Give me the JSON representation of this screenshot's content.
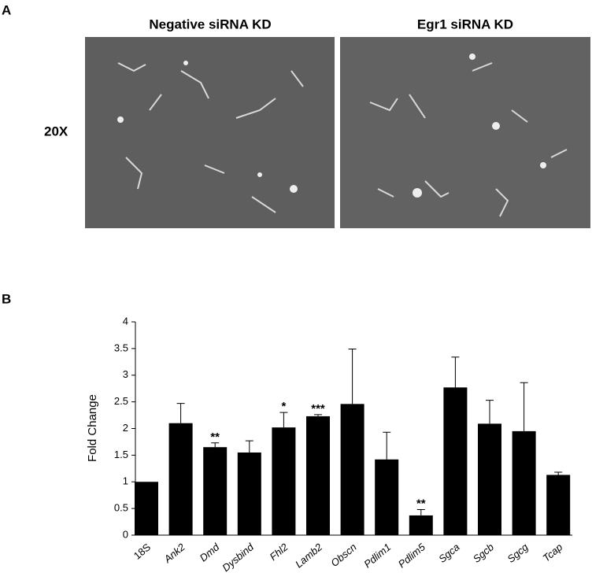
{
  "panel_a": {
    "label": "A",
    "columns": [
      "Negative siRNA KD",
      "Egr1 siRNA KD"
    ],
    "row_label": "20X"
  },
  "panel_b_label": "B",
  "chart_data": {
    "type": "bar",
    "ylabel": "Fold Change",
    "categories": [
      "18S",
      "Ank2",
      "Dmd",
      "Dysbind",
      "Fhl2",
      "Lamb2",
      "Obscn",
      "Pdlim1",
      "Pdlim5",
      "Sgca",
      "Sgcb",
      "Sgcg",
      "Tcap"
    ],
    "values": [
      1.0,
      2.1,
      1.65,
      1.55,
      2.02,
      2.23,
      2.46,
      1.42,
      0.37,
      2.77,
      2.09,
      1.95,
      1.13
    ],
    "errors": [
      null,
      0.37,
      0.08,
      0.22,
      0.28,
      0.03,
      1.03,
      0.51,
      0.11,
      0.57,
      0.44,
      0.91,
      0.05
    ],
    "significance": [
      null,
      null,
      "**",
      null,
      "*",
      "***",
      null,
      null,
      "**",
      null,
      null,
      null,
      null
    ],
    "color": "#000000",
    "ylim": [
      0,
      4
    ],
    "yticks": [
      0,
      0.5,
      1,
      1.5,
      2,
      2.5,
      3,
      3.5,
      4
    ],
    "grid": false
  }
}
